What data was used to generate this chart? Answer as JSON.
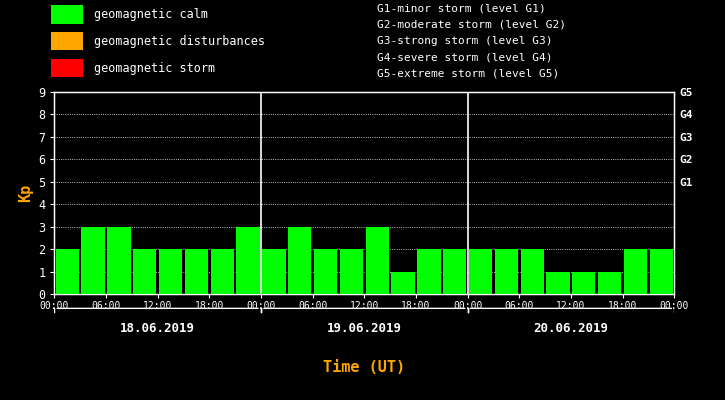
{
  "background_color": "#000000",
  "plot_bg_color": "#000000",
  "bar_color_calm": "#00ff00",
  "bar_color_disturbance": "#ffa500",
  "bar_color_storm": "#ff0000",
  "text_color": "#ffffff",
  "orange_color": "#ffa500",
  "ylim": [
    0,
    9
  ],
  "yticks": [
    0,
    1,
    2,
    3,
    4,
    5,
    6,
    7,
    8,
    9
  ],
  "right_labels": [
    "G1",
    "G2",
    "G3",
    "G4",
    "G5"
  ],
  "right_label_yvals": [
    5,
    6,
    7,
    8,
    9
  ],
  "legend_items": [
    {
      "label": "geomagnetic calm",
      "color": "#00ff00"
    },
    {
      "label": "geomagnetic disturbances",
      "color": "#ffa500"
    },
    {
      "label": "geomagnetic storm",
      "color": "#ff0000"
    }
  ],
  "right_legend_lines": [
    "G1-minor storm (level G1)",
    "G2-moderate storm (level G2)",
    "G3-strong storm (level G3)",
    "G4-severe storm (level G4)",
    "G5-extreme storm (level G5)"
  ],
  "day_labels": [
    "18.06.2019",
    "19.06.2019",
    "20.06.2019"
  ],
  "xlabel": "Time (UT)",
  "ylabel": "Kp",
  "separator_color": "#ffffff",
  "day1_bars": [
    2,
    3,
    3,
    2,
    2,
    2,
    2,
    3
  ],
  "day2_bars": [
    2,
    3,
    2,
    2,
    3,
    1,
    2,
    2
  ],
  "day3_bars": [
    2,
    2,
    2,
    1,
    1,
    1,
    2,
    2
  ]
}
